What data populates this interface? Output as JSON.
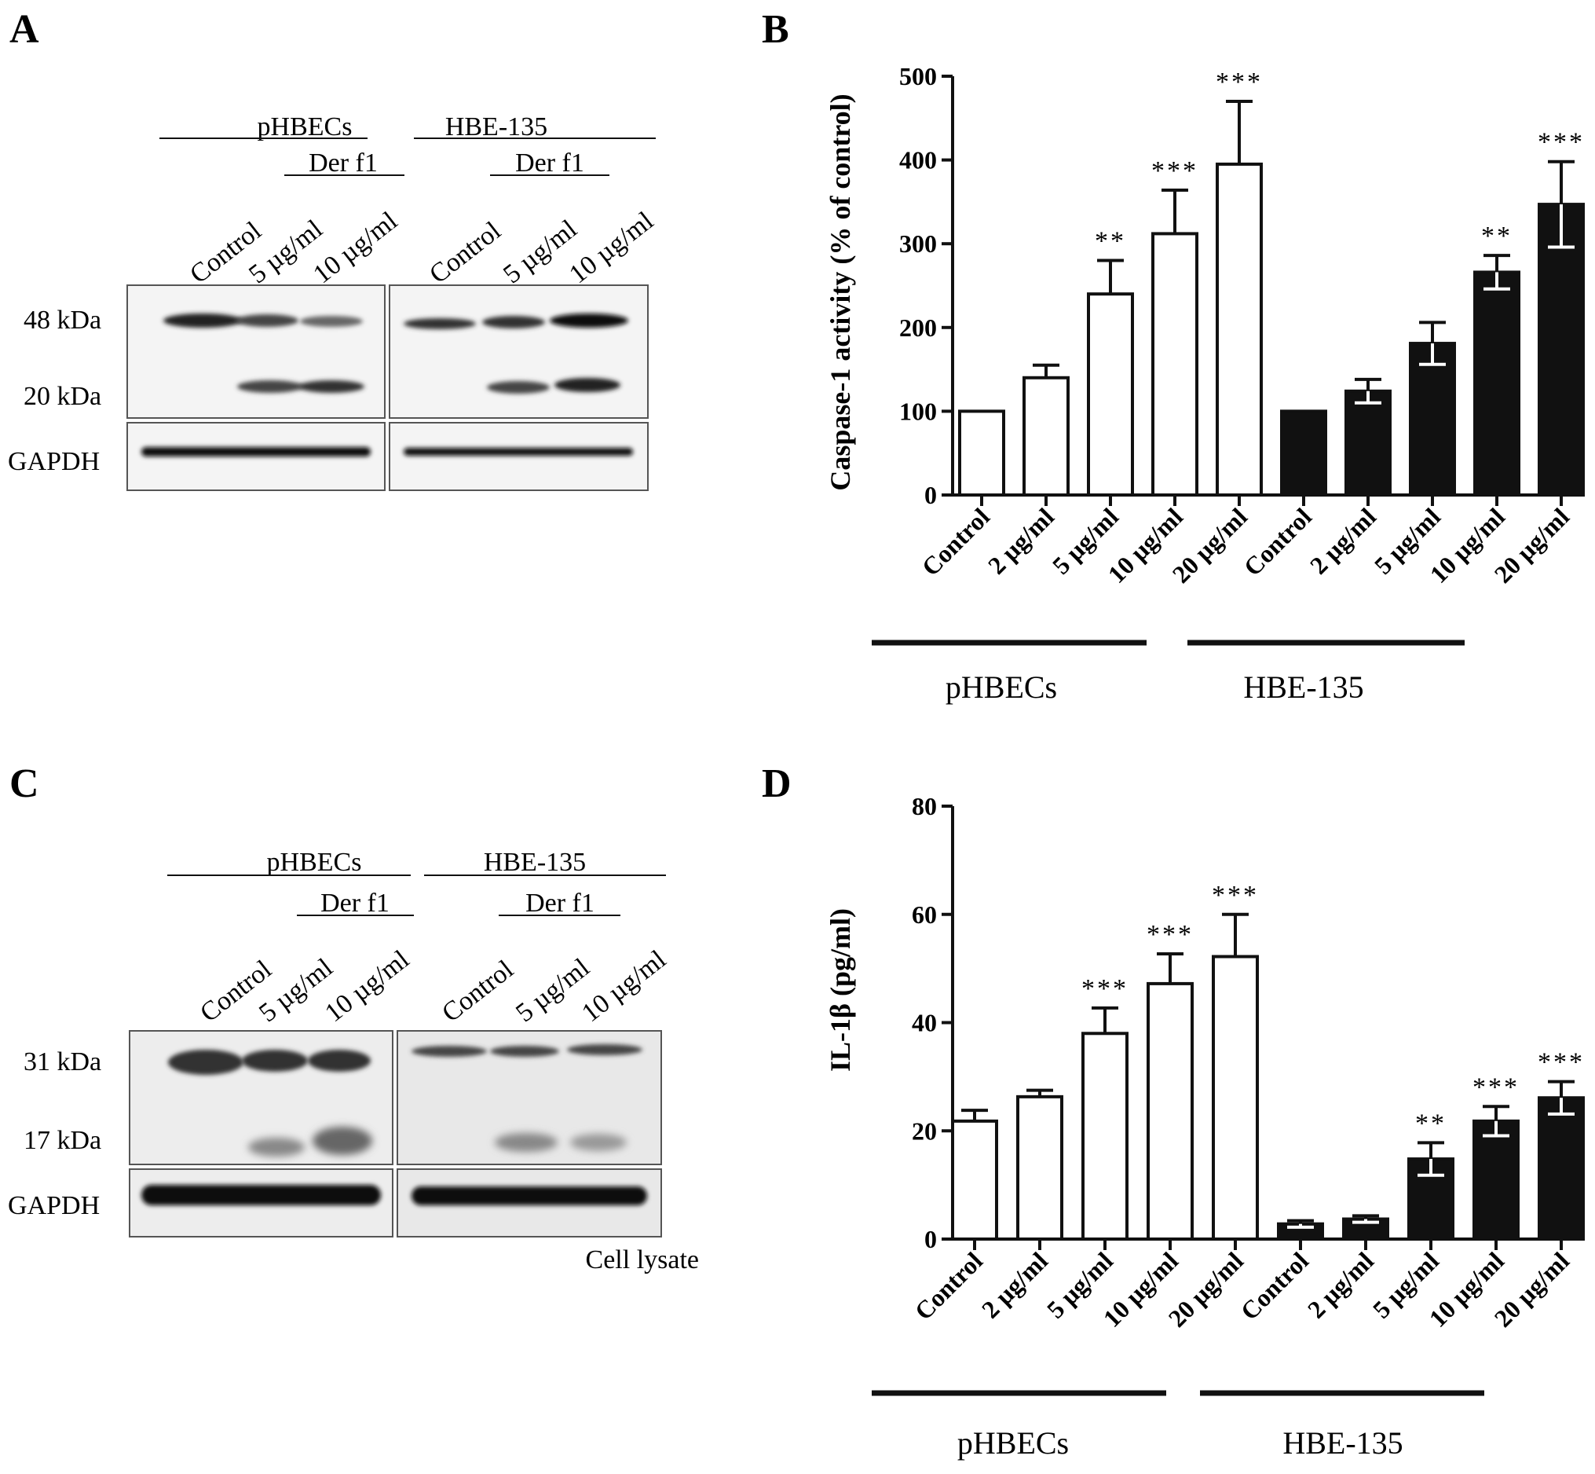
{
  "panels": {
    "A": {
      "letter": "A",
      "group1": "pHBECs",
      "group2": "HBE-135",
      "treatment1": "Der f1",
      "treatment2": "Der f1",
      "lanes1": [
        "Control",
        "5 µg/ml",
        "10 µg/ml"
      ],
      "lanes2": [
        "Control",
        "5 µg/ml",
        "10 µg/ml"
      ],
      "band_upper": "48 kDa",
      "band_lower": "20 kDa",
      "band_loading": "GAPDH"
    },
    "C": {
      "letter": "C",
      "group1": "pHBECs",
      "group2": "HBE-135",
      "treatment1": "Der f1",
      "treatment2": "Der f1",
      "lanes1": [
        "Control",
        "5 µg/ml",
        "10 µg/ml"
      ],
      "lanes2": [
        "Control",
        "5 µg/ml",
        "10 µg/ml"
      ],
      "band_upper": "31 kDa",
      "band_lower": "17 kDa",
      "band_loading": "GAPDH",
      "caption": "Cell lysate"
    },
    "B": {
      "letter": "B",
      "group1": "pHBECs",
      "group2": "HBE-135"
    },
    "D": {
      "letter": "D",
      "group1": "pHBECs",
      "group2": "HBE-135"
    }
  },
  "chart_data": [
    {
      "panel": "B",
      "type": "bar",
      "ylabel": "Caspase-1 activity (% of control)",
      "xlabel": "",
      "ylim": [
        0,
        500
      ],
      "yticks": [
        "0",
        "100",
        "200",
        "300",
        "400",
        "500"
      ],
      "categories": [
        "Control",
        "2 µg/ml",
        "5 µg/ml",
        "10 µg/ml",
        "20 µg/ml",
        "Control",
        "2 µg/ml",
        "5 µg/ml",
        "10 µg/ml",
        "20 µg/ml"
      ],
      "groups": [
        "pHBECs",
        "HBE-135"
      ],
      "values": [
        100,
        140,
        240,
        312,
        395,
        100,
        124,
        181,
        266,
        347
      ],
      "errors": [
        0,
        15,
        40,
        52,
        75,
        0,
        14,
        25,
        20,
        51
      ],
      "significance": [
        "",
        "",
        "**",
        "***",
        "***",
        "",
        "",
        "",
        "**",
        "***"
      ],
      "fills": [
        "#ffffff",
        "#ffffff",
        "#ffffff",
        "#ffffff",
        "#ffffff",
        "#111111",
        "#111111",
        "#111111",
        "#111111",
        "#111111"
      ]
    },
    {
      "panel": "D",
      "type": "bar",
      "ylabel": "IL-1β (pg/ml)",
      "xlabel": "",
      "ylim": [
        0,
        80
      ],
      "yticks": [
        "0",
        "20",
        "40",
        "60",
        "80"
      ],
      "categories": [
        "Control",
        "2 µg/ml",
        "5 µg/ml",
        "10 µg/ml",
        "20 µg/ml",
        "Control",
        "2 µg/ml",
        "5 µg/ml",
        "10 µg/ml",
        "20 µg/ml"
      ],
      "groups": [
        "pHBECs",
        "HBE-135"
      ],
      "values": [
        21.8,
        26.3,
        38,
        47.2,
        52.2,
        2.8,
        3.7,
        14.8,
        21.8,
        26.1
      ],
      "errors": [
        2,
        1.2,
        4.7,
        5.5,
        7.8,
        0.6,
        0.6,
        3,
        2.7,
        3
      ],
      "significance": [
        "",
        "",
        "***",
        "***",
        "***",
        "",
        "",
        "**",
        "***",
        "***"
      ],
      "fills": [
        "#ffffff",
        "#ffffff",
        "#ffffff",
        "#ffffff",
        "#ffffff",
        "#111111",
        "#111111",
        "#111111",
        "#111111",
        "#111111"
      ]
    }
  ]
}
